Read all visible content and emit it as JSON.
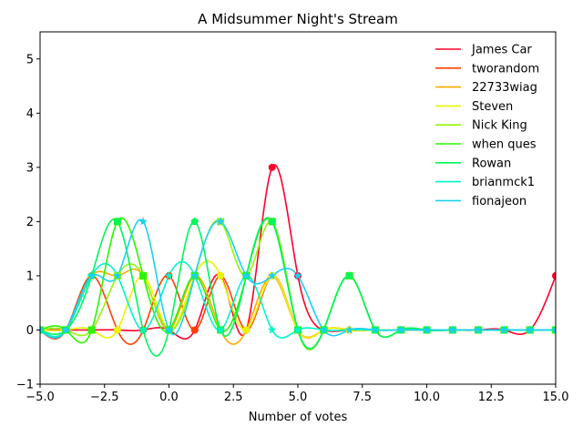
{
  "chart_data": {
    "type": "line",
    "title": "A Midsummer Night's Stream",
    "xlabel": "Number of votes",
    "ylabel": "",
    "xlim": [
      -5,
      15
    ],
    "ylim": [
      -1,
      5.5
    ],
    "xticks": [
      -5.0,
      -2.5,
      0.0,
      2.5,
      5.0,
      7.5,
      10.0,
      12.5,
      15.0
    ],
    "xtick_labels": [
      "−5.0",
      "−2.5",
      "0.0",
      "2.5",
      "5.0",
      "7.5",
      "10.0",
      "12.5",
      "15.0"
    ],
    "yticks": [
      -1,
      0,
      1,
      2,
      3,
      4,
      5
    ],
    "ytick_labels": [
      "−1",
      "0",
      "1",
      "2",
      "3",
      "4",
      "5"
    ],
    "grid": false,
    "legend_position": "top-right",
    "x": [
      -5,
      -4,
      -3,
      -2,
      -1,
      0,
      1,
      2,
      3,
      4,
      5,
      6,
      7,
      8,
      9,
      10,
      11,
      12,
      13,
      14,
      15
    ],
    "series": [
      {
        "name": "James Car",
        "color": "#ff0029",
        "marker": "circle",
        "values": [
          0,
          0,
          0,
          0,
          0,
          0,
          0,
          1,
          0,
          3,
          1,
          0,
          0,
          0,
          0,
          0,
          0,
          0,
          0,
          0,
          1
        ]
      },
      {
        "name": "tworandom",
        "color": "#ff4000",
        "marker": "circle",
        "values": [
          0,
          0,
          1,
          0,
          0,
          1,
          0,
          1,
          0,
          1,
          0,
          0,
          0,
          0,
          0,
          0,
          0,
          0,
          0,
          0,
          0
        ]
      },
      {
        "name": "22733wiag",
        "color": "#ffaa00",
        "marker": "circle",
        "values": [
          0,
          0,
          1,
          1,
          1,
          0,
          1,
          0,
          0,
          1,
          0,
          0,
          0,
          0,
          0,
          0,
          0,
          0,
          0,
          0,
          0
        ]
      },
      {
        "name": "Steven",
        "color": "#e8f500",
        "marker": "circle",
        "values": [
          0,
          0,
          0,
          0,
          1,
          0,
          1,
          1,
          0,
          1,
          0,
          0,
          0,
          0,
          0,
          0,
          0,
          0,
          0,
          0,
          0
        ]
      },
      {
        "name": "Nick King",
        "color": "#95f50a",
        "marker": "square",
        "values": [
          0,
          0,
          0,
          1,
          1,
          0,
          1,
          2,
          1,
          2,
          0,
          0,
          1,
          0,
          0,
          0,
          0,
          0,
          0,
          0,
          0
        ]
      },
      {
        "name": "when ques",
        "color": "#2af500",
        "marker": "square",
        "values": [
          0,
          0,
          0,
          2,
          1,
          0,
          1,
          0,
          1,
          2,
          0,
          0,
          1,
          0,
          0,
          0,
          0,
          0,
          0,
          0,
          0
        ]
      },
      {
        "name": "Rowan",
        "color": "#00f55a",
        "marker": "pentagon",
        "values": [
          0,
          0,
          1,
          2,
          0,
          0,
          2,
          0,
          1,
          2,
          0,
          0,
          1,
          0,
          0,
          0,
          0,
          0,
          0,
          0,
          0
        ]
      },
      {
        "name": "brianmck1",
        "color": "#00f5c8",
        "marker": "star",
        "values": [
          0,
          0,
          1,
          1,
          0,
          1,
          1,
          0,
          1,
          0,
          0,
          0,
          0,
          0,
          0,
          0,
          0,
          0,
          0,
          0,
          0
        ]
      },
      {
        "name": "fionajeon",
        "color": "#1ad0f5",
        "marker": "star",
        "values": [
          0,
          0,
          1,
          1,
          2,
          0,
          1,
          2,
          1,
          1,
          1,
          0,
          0,
          0,
          0,
          0,
          0,
          0,
          0,
          0,
          0
        ]
      }
    ]
  }
}
